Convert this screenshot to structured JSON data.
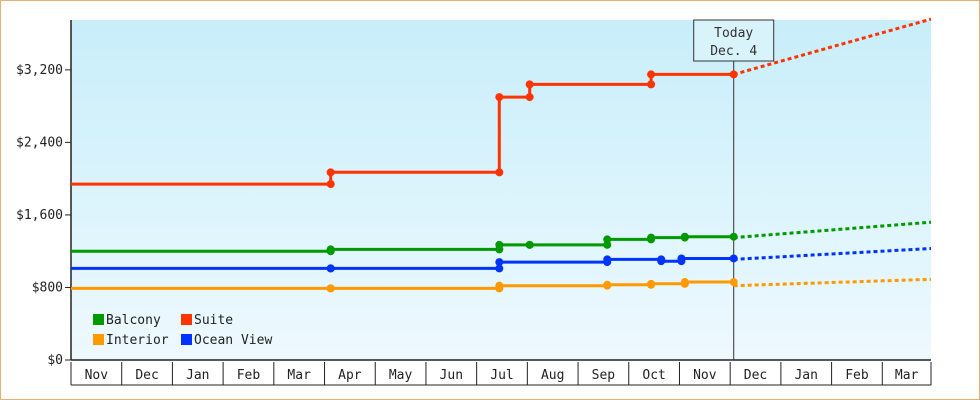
{
  "chart_data": {
    "type": "line",
    "y_ticks": [
      "$0",
      "$800",
      "$1,600",
      "$2,400",
      "$3,200"
    ],
    "y_tick_values": [
      0,
      800,
      1600,
      2400,
      3200
    ],
    "ylim": [
      0,
      3750
    ],
    "x_months": [
      "Nov",
      "Dec",
      "Jan",
      "Feb",
      "Mar",
      "Apr",
      "May",
      "Jun",
      "Jul",
      "Aug",
      "Sep",
      "Oct",
      "Nov",
      "Dec",
      "Jan",
      "Feb",
      "Mar"
    ],
    "x_range_days": [
      0,
      510
    ],
    "today": {
      "day": 393,
      "label1": "Today",
      "label2": "Dec. 4"
    },
    "legend_position": "bottom-left",
    "series": [
      {
        "name": "Suite",
        "color": "#ff3300",
        "points": [
          [
            0,
            1940
          ],
          [
            154,
            1940
          ],
          [
            154,
            2070
          ],
          [
            254,
            2070
          ],
          [
            254,
            2900
          ],
          [
            272,
            2900
          ],
          [
            272,
            3040
          ],
          [
            344,
            3040
          ],
          [
            344,
            3150
          ],
          [
            393,
            3150
          ]
        ],
        "forecast": [
          [
            393,
            3150
          ],
          [
            510,
            3760
          ]
        ]
      },
      {
        "name": "Balcony",
        "color": "#009900",
        "points": [
          [
            0,
            1200
          ],
          [
            154,
            1200
          ],
          [
            154,
            1220
          ],
          [
            254,
            1220
          ],
          [
            254,
            1270
          ],
          [
            272,
            1270
          ],
          [
            272,
            1270
          ],
          [
            318,
            1270
          ],
          [
            318,
            1330
          ],
          [
            344,
            1330
          ],
          [
            344,
            1350
          ],
          [
            364,
            1350
          ],
          [
            364,
            1360
          ],
          [
            393,
            1360
          ]
        ],
        "forecast": [
          [
            393,
            1350
          ],
          [
            510,
            1520
          ]
        ]
      },
      {
        "name": "Ocean View",
        "color": "#0033ff",
        "points": [
          [
            0,
            1010
          ],
          [
            154,
            1010
          ],
          [
            154,
            1010
          ],
          [
            254,
            1010
          ],
          [
            254,
            1080
          ],
          [
            318,
            1080
          ],
          [
            318,
            1110
          ],
          [
            350,
            1110
          ],
          [
            350,
            1090
          ],
          [
            362,
            1090
          ],
          [
            362,
            1120
          ],
          [
            393,
            1120
          ]
        ],
        "forecast": [
          [
            393,
            1110
          ],
          [
            510,
            1230
          ]
        ]
      },
      {
        "name": "Interior",
        "color": "#ff9900",
        "points": [
          [
            0,
            790
          ],
          [
            154,
            790
          ],
          [
            154,
            790
          ],
          [
            254,
            790
          ],
          [
            254,
            820
          ],
          [
            318,
            820
          ],
          [
            318,
            830
          ],
          [
            344,
            830
          ],
          [
            344,
            840
          ],
          [
            364,
            840
          ],
          [
            364,
            860
          ],
          [
            393,
            860
          ]
        ],
        "forecast": [
          [
            393,
            820
          ],
          [
            510,
            890
          ]
        ]
      }
    ],
    "legend": [
      {
        "name": "Balcony",
        "color": "#009900"
      },
      {
        "name": "Suite",
        "color": "#ff3300"
      },
      {
        "name": "Interior",
        "color": "#ff9900"
      },
      {
        "name": "Ocean View",
        "color": "#0033ff"
      }
    ]
  }
}
